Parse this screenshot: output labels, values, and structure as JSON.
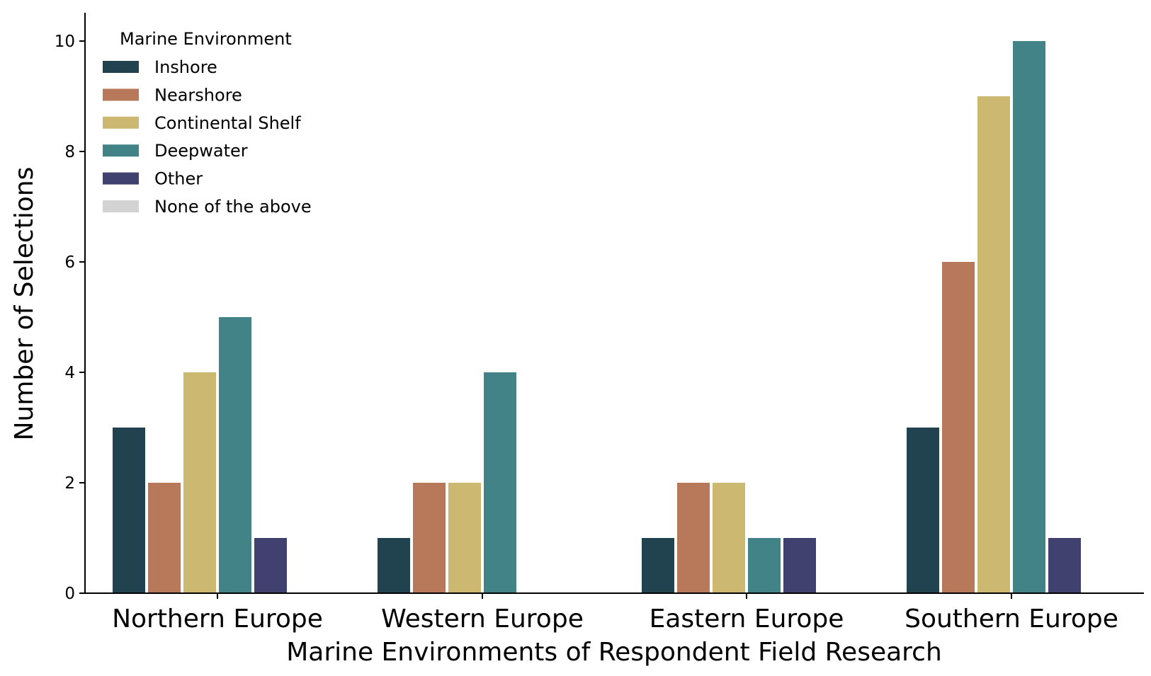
{
  "chart_data": {
    "type": "bar",
    "title": "",
    "xlabel": "Marine Environments of Respondent Field Research",
    "ylabel": "Number of Selections",
    "categories": [
      "Northern Europe",
      "Western Europe",
      "Eastern Europe",
      "Southern Europe"
    ],
    "ylim": [
      0,
      10.5
    ],
    "yticks": [
      0,
      2,
      4,
      6,
      8,
      10
    ],
    "grid": false,
    "legend": {
      "title": "Marine Environment",
      "position": "top-left"
    },
    "series": [
      {
        "name": "Inshore",
        "color": "#21434f",
        "values": [
          3,
          1,
          1,
          3
        ]
      },
      {
        "name": "Nearshore",
        "color": "#b7795a",
        "values": [
          2,
          2,
          2,
          6
        ]
      },
      {
        "name": "Continental Shelf",
        "color": "#cdb872",
        "values": [
          4,
          2,
          2,
          9
        ]
      },
      {
        "name": "Deepwater",
        "color": "#418387",
        "values": [
          5,
          4,
          1,
          10
        ]
      },
      {
        "name": "Other",
        "color": "#414170",
        "values": [
          1,
          0,
          1,
          1
        ]
      },
      {
        "name": "None of the above",
        "color": "#d3d3d3",
        "values": [
          0,
          0,
          0,
          0
        ]
      }
    ]
  }
}
